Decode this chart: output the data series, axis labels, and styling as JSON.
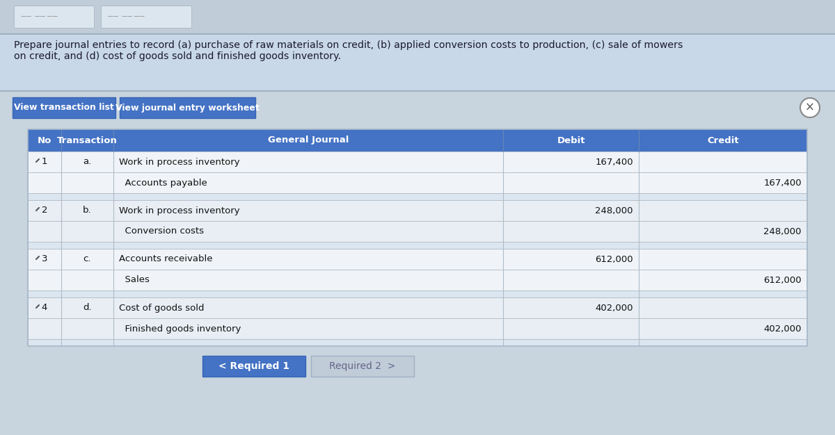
{
  "page_bg": "#c8d4de",
  "top_bar_bg": "#c0ccd8",
  "tab1_bg": "#d8e2ea",
  "tab2_bg": "#d0dce6",
  "title_bg": "#c8d8e8",
  "title_line_bg": "#b8ccd8",
  "title_text": "Prepare journal entries to record (a) purchase of raw materials on credit, (b) applied conversion costs to production, (c) sale of mowers\non credit, and (d) cost of goods sold and finished goods inventory.",
  "btn_bar_bg": "#c8d4de",
  "btn1_text": "View transaction list",
  "btn2_text": "View journal entry worksheet",
  "btn_bg": "#4472c4",
  "btn_text_color": "#ffffff",
  "header_bg": "#4472c4",
  "header_text_color": "#ffffff",
  "header_cols": [
    "No",
    "Transaction",
    "General Journal",
    "Debit",
    "Credit"
  ],
  "table_bg": "#e8eef4",
  "row_bg_a": "#f0f4f8",
  "row_bg_b": "#e8eef4",
  "spacer_bg": "#dce6f0",
  "table_border_color": "#a8b8c8",
  "cell_border_color": "#b0bcc8",
  "entries": [
    {
      "no": "1",
      "trans": "a.",
      "debit_line": "Work in process inventory",
      "debit_val": "167,400",
      "credit_line": "  Accounts payable",
      "credit_val": "167,400"
    },
    {
      "no": "2",
      "trans": "b.",
      "debit_line": "Work in process inventory",
      "debit_val": "248,000",
      "credit_line": "  Conversion costs",
      "credit_val": "248,000"
    },
    {
      "no": "3",
      "trans": "c.",
      "debit_line": "Accounts receivable",
      "debit_val": "612,000",
      "credit_line": "  Sales",
      "credit_val": "612,000"
    },
    {
      "no": "4",
      "trans": "d.",
      "debit_line": "Cost of goods sold",
      "debit_val": "402,000",
      "credit_line": "  Finished goods inventory",
      "credit_val": "402,000"
    }
  ],
  "btn_req1_text": "< Required 1",
  "btn_req2_text": "Required 2  >",
  "btn_req1_bg": "#4472c4",
  "btn_req2_bg": "#c0ccd8",
  "bottom_bg": "#c8d4de"
}
